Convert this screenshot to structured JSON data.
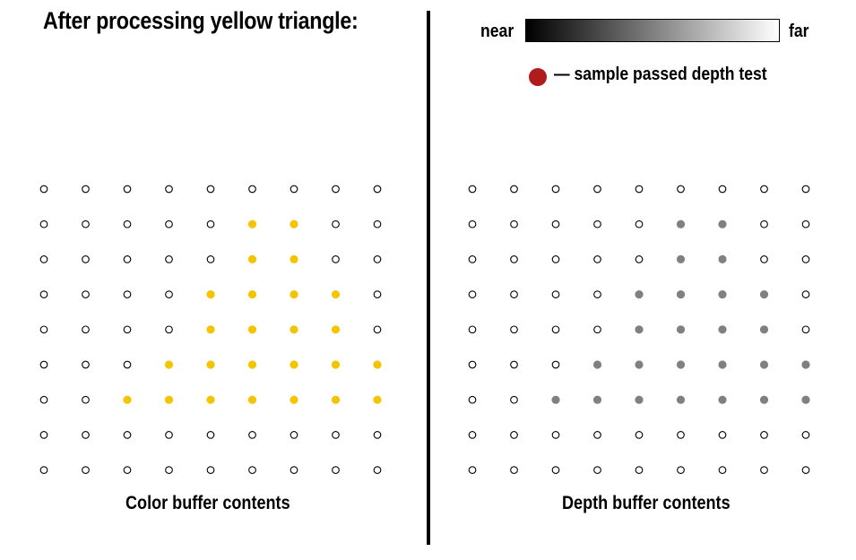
{
  "title": "After processing yellow triangle:",
  "legend": {
    "near_label": "near",
    "far_label": "far",
    "gradient_from": "#000000",
    "gradient_to": "#ffffff",
    "dot_color": "#b01c1c",
    "dot_label": "— sample passed depth test"
  },
  "color_buffer": {
    "caption": "Color buffer contents",
    "filled_color": "#f5c400",
    "rows": [
      [
        0,
        0,
        0,
        0,
        0,
        0,
        0,
        0,
        0
      ],
      [
        0,
        0,
        0,
        0,
        0,
        1,
        1,
        0,
        0
      ],
      [
        0,
        0,
        0,
        0,
        0,
        1,
        1,
        0,
        0
      ],
      [
        0,
        0,
        0,
        0,
        1,
        1,
        1,
        1,
        0
      ],
      [
        0,
        0,
        0,
        0,
        1,
        1,
        1,
        1,
        0
      ],
      [
        0,
        0,
        0,
        1,
        1,
        1,
        1,
        1,
        1
      ],
      [
        0,
        0,
        1,
        1,
        1,
        1,
        1,
        1,
        1
      ],
      [
        0,
        0,
        0,
        0,
        0,
        0,
        0,
        0,
        0
      ],
      [
        0,
        0,
        0,
        0,
        0,
        0,
        0,
        0,
        0
      ]
    ]
  },
  "depth_buffer": {
    "caption": "Depth buffer contents",
    "filled_color": "#808080",
    "rows": [
      [
        0,
        0,
        0,
        0,
        0,
        0,
        0,
        0,
        0
      ],
      [
        0,
        0,
        0,
        0,
        0,
        1,
        1,
        0,
        0
      ],
      [
        0,
        0,
        0,
        0,
        0,
        1,
        1,
        0,
        0
      ],
      [
        0,
        0,
        0,
        0,
        1,
        1,
        1,
        1,
        0
      ],
      [
        0,
        0,
        0,
        0,
        1,
        1,
        1,
        1,
        0
      ],
      [
        0,
        0,
        0,
        1,
        1,
        1,
        1,
        1,
        1
      ],
      [
        0,
        0,
        1,
        1,
        1,
        1,
        1,
        1,
        1
      ],
      [
        0,
        0,
        0,
        0,
        0,
        0,
        0,
        0,
        0
      ],
      [
        0,
        0,
        0,
        0,
        0,
        0,
        0,
        0,
        0
      ]
    ]
  }
}
